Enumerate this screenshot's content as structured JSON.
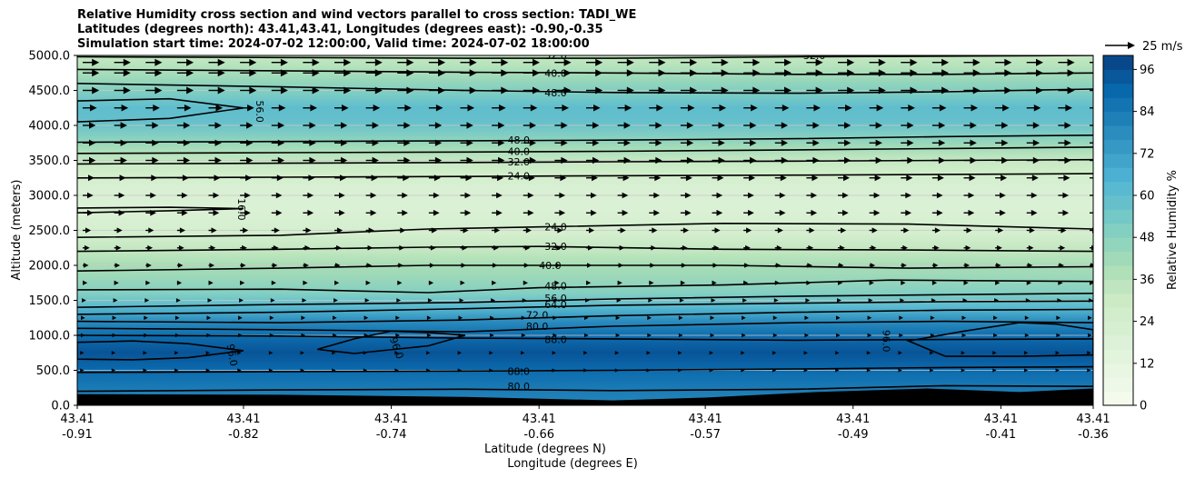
{
  "chart_data": {
    "type": "contour",
    "title_lines": [
      "Relative Humidity cross section and wind vectors parallel to cross section: TADI_WE",
      "Latitudes (degrees north): 43.41,43.41, Longitudes (degrees east): -0.90,-0.35",
      "Simulation start time: 2024-07-02 12:00:00, Valid time: 2024-07-02 18:00:00"
    ],
    "xlabel": "Latitude (degrees N)",
    "xlabel2": "Longitude (degrees E)",
    "ylabel": "Altitude (meters)",
    "ylim": [
      0,
      5000
    ],
    "x_range": [
      -0.91,
      -0.36
    ],
    "x_ticks": [
      {
        "lat": "43.41",
        "lon": "-0.91",
        "x": -0.91
      },
      {
        "lat": "43.41",
        "lon": "-0.82",
        "x": -0.82
      },
      {
        "lat": "43.41",
        "lon": "-0.74",
        "x": -0.74
      },
      {
        "lat": "43.41",
        "lon": "-0.66",
        "x": -0.66
      },
      {
        "lat": "43.41",
        "lon": "-0.57",
        "x": -0.57
      },
      {
        "lat": "43.41",
        "lon": "-0.49",
        "x": -0.49
      },
      {
        "lat": "43.41",
        "lon": "-0.41",
        "x": -0.41
      },
      {
        "lat": "43.41",
        "lon": "-0.36",
        "x": -0.36
      }
    ],
    "y_ticks": [
      "0.0",
      "500.0",
      "1000.0",
      "1500.0",
      "2000.0",
      "2500.0",
      "3000.0",
      "3500.0",
      "4000.0",
      "4500.0",
      "5000.0"
    ],
    "y_tick_values": [
      0,
      500,
      1000,
      1500,
      2000,
      2500,
      3000,
      3500,
      4000,
      4500,
      5000
    ],
    "grid_horizontal": true,
    "colorbar": {
      "label": "Relative Humidity %",
      "ticks": [
        "0",
        "12",
        "24",
        "36",
        "48",
        "60",
        "72",
        "84",
        "96"
      ],
      "tick_values": [
        0,
        12,
        24,
        36,
        48,
        60,
        72,
        84,
        96
      ],
      "range": [
        0,
        100
      ]
    },
    "wind_reference": {
      "label": "25 m/s"
    },
    "humidity_profile": [
      {
        "alt": 0,
        "rh": 80
      },
      {
        "alt": 250,
        "rh": 84
      },
      {
        "alt": 500,
        "rh": 89
      },
      {
        "alt": 750,
        "rh": 95
      },
      {
        "alt": 1000,
        "rh": 88
      },
      {
        "alt": 1200,
        "rh": 78
      },
      {
        "alt": 1400,
        "rh": 62
      },
      {
        "alt": 1600,
        "rh": 50
      },
      {
        "alt": 1800,
        "rh": 44
      },
      {
        "alt": 2000,
        "rh": 40
      },
      {
        "alt": 2200,
        "rh": 33
      },
      {
        "alt": 2450,
        "rh": 24
      },
      {
        "alt": 2800,
        "rh": 19
      },
      {
        "alt": 3100,
        "rh": 20
      },
      {
        "alt": 3300,
        "rh": 25
      },
      {
        "alt": 3500,
        "rh": 32
      },
      {
        "alt": 3700,
        "rh": 42
      },
      {
        "alt": 3850,
        "rh": 50
      },
      {
        "alt": 4050,
        "rh": 58
      },
      {
        "alt": 4250,
        "rh": 60
      },
      {
        "alt": 4450,
        "rh": 52
      },
      {
        "alt": 4650,
        "rh": 44
      },
      {
        "alt": 4850,
        "rh": 36
      },
      {
        "alt": 5000,
        "rh": 32
      }
    ],
    "terrain": [
      {
        "x": -0.91,
        "alt": 160
      },
      {
        "x": -0.8,
        "alt": 150
      },
      {
        "x": -0.7,
        "alt": 120
      },
      {
        "x": -0.62,
        "alt": 70
      },
      {
        "x": -0.57,
        "alt": 110
      },
      {
        "x": -0.51,
        "alt": 190
      },
      {
        "x": -0.45,
        "alt": 240
      },
      {
        "x": -0.4,
        "alt": 190
      },
      {
        "x": -0.36,
        "alt": 240
      }
    ],
    "contours": [
      {
        "level": "80.0",
        "points": [
          [
            -0.91,
            200
          ],
          [
            -0.8,
            220
          ],
          [
            -0.7,
            230
          ],
          [
            -0.62,
            210
          ],
          [
            -0.52,
            230
          ],
          [
            -0.44,
            280
          ],
          [
            -0.36,
            270
          ]
        ]
      },
      {
        "level": "88.0",
        "points": [
          [
            -0.91,
            470
          ],
          [
            -0.8,
            480
          ],
          [
            -0.7,
            490
          ],
          [
            -0.62,
            500
          ],
          [
            -0.52,
            520
          ],
          [
            -0.44,
            540
          ],
          [
            -0.36,
            550
          ]
        ]
      },
      {
        "level": "88.0",
        "points": [
          [
            -0.91,
            1000
          ],
          [
            -0.8,
            990
          ],
          [
            -0.7,
            960
          ],
          [
            -0.62,
            950
          ],
          [
            -0.52,
            930
          ],
          [
            -0.44,
            940
          ],
          [
            -0.36,
            950
          ]
        ]
      },
      {
        "level": "80.0",
        "points": [
          [
            -0.91,
            1100
          ],
          [
            -0.8,
            1080
          ],
          [
            -0.7,
            1050
          ],
          [
            -0.62,
            1130
          ],
          [
            -0.52,
            1180
          ],
          [
            -0.44,
            1200
          ],
          [
            -0.36,
            1180
          ]
        ]
      },
      {
        "level": "72.0",
        "points": [
          [
            -0.91,
            1200
          ],
          [
            -0.8,
            1180
          ],
          [
            -0.7,
            1220
          ],
          [
            -0.62,
            1280
          ],
          [
            -0.52,
            1330
          ],
          [
            -0.44,
            1360
          ],
          [
            -0.36,
            1370
          ]
        ]
      },
      {
        "level": "64.0",
        "points": [
          [
            -0.91,
            1300
          ],
          [
            -0.8,
            1330
          ],
          [
            -0.7,
            1380
          ],
          [
            -0.62,
            1430
          ],
          [
            -0.52,
            1460
          ],
          [
            -0.44,
            1480
          ],
          [
            -0.36,
            1490
          ]
        ]
      },
      {
        "level": "56.0",
        "points": [
          [
            -0.91,
            1400
          ],
          [
            -0.8,
            1440
          ],
          [
            -0.7,
            1470
          ],
          [
            -0.62,
            1520
          ],
          [
            -0.52,
            1560
          ],
          [
            -0.44,
            1580
          ],
          [
            -0.36,
            1600
          ]
        ]
      },
      {
        "level": "48.0",
        "points": [
          [
            -0.91,
            1650
          ],
          [
            -0.8,
            1660
          ],
          [
            -0.72,
            1610
          ],
          [
            -0.66,
            1680
          ],
          [
            -0.56,
            1720
          ],
          [
            -0.47,
            1790
          ],
          [
            -0.36,
            1770
          ]
        ]
      },
      {
        "level": "40.0",
        "points": [
          [
            -0.91,
            1920
          ],
          [
            -0.8,
            1960
          ],
          [
            -0.72,
            2000
          ],
          [
            -0.66,
            2000
          ],
          [
            -0.56,
            2000
          ],
          [
            -0.46,
            1960
          ],
          [
            -0.36,
            1980
          ]
        ]
      },
      {
        "level": "32.0",
        "points": [
          [
            -0.91,
            2200
          ],
          [
            -0.8,
            2230
          ],
          [
            -0.72,
            2260
          ],
          [
            -0.66,
            2270
          ],
          [
            -0.56,
            2230
          ],
          [
            -0.46,
            2220
          ],
          [
            -0.36,
            2200
          ]
        ]
      },
      {
        "level": "24.0",
        "points": [
          [
            -0.91,
            2400
          ],
          [
            -0.8,
            2430
          ],
          [
            -0.72,
            2520
          ],
          [
            -0.66,
            2550
          ],
          [
            -0.56,
            2600
          ],
          [
            -0.46,
            2590
          ],
          [
            -0.36,
            2520
          ]
        ]
      },
      {
        "level": "24.0",
        "points": [
          [
            -0.91,
            3250
          ],
          [
            -0.8,
            3260
          ],
          [
            -0.7,
            3270
          ],
          [
            -0.62,
            3280
          ],
          [
            -0.52,
            3290
          ],
          [
            -0.44,
            3300
          ],
          [
            -0.36,
            3310
          ]
        ]
      },
      {
        "level": "32.0",
        "points": [
          [
            -0.91,
            3450
          ],
          [
            -0.8,
            3460
          ],
          [
            -0.7,
            3470
          ],
          [
            -0.62,
            3480
          ],
          [
            -0.52,
            3490
          ],
          [
            -0.44,
            3500
          ],
          [
            -0.36,
            3510
          ]
        ]
      },
      {
        "level": "40.0",
        "points": [
          [
            -0.91,
            3600
          ],
          [
            -0.8,
            3610
          ],
          [
            -0.7,
            3620
          ],
          [
            -0.62,
            3630
          ],
          [
            -0.52,
            3650
          ],
          [
            -0.44,
            3670
          ],
          [
            -0.36,
            3690
          ]
        ]
      },
      {
        "level": "48.0",
        "points": [
          [
            -0.91,
            3760
          ],
          [
            -0.8,
            3770
          ],
          [
            -0.7,
            3780
          ],
          [
            -0.62,
            3790
          ],
          [
            -0.52,
            3810
          ],
          [
            -0.44,
            3840
          ],
          [
            -0.36,
            3860
          ]
        ]
      },
      {
        "level": "48.0",
        "points": [
          [
            -0.91,
            4600
          ],
          [
            -0.8,
            4550
          ],
          [
            -0.7,
            4500
          ],
          [
            -0.62,
            4470
          ],
          [
            -0.52,
            4460
          ],
          [
            -0.44,
            4480
          ],
          [
            -0.36,
            4520
          ]
        ]
      },
      {
        "level": "40.0",
        "points": [
          [
            -0.91,
            4800
          ],
          [
            -0.8,
            4780
          ],
          [
            -0.7,
            4760
          ],
          [
            -0.62,
            4750
          ],
          [
            -0.52,
            4730
          ],
          [
            -0.44,
            4730
          ],
          [
            -0.36,
            4750
          ]
        ]
      },
      {
        "level": "32.0",
        "points": [
          [
            -0.91,
            4980
          ],
          [
            -0.8,
            4970
          ],
          [
            -0.7,
            4960
          ],
          [
            -0.62,
            4960
          ],
          [
            -0.52,
            4980
          ],
          [
            -0.44,
            4990
          ],
          [
            -0.36,
            5000
          ]
        ]
      }
    ],
    "closed_contours": [
      {
        "level": "96.0",
        "points": [
          [
            -0.91,
            900
          ],
          [
            -0.88,
            920
          ],
          [
            -0.85,
            880
          ],
          [
            -0.82,
            780
          ],
          [
            -0.85,
            680
          ],
          [
            -0.88,
            650
          ],
          [
            -0.91,
            660
          ]
        ]
      },
      {
        "level": "96.0",
        "points": [
          [
            -0.78,
            800
          ],
          [
            -0.76,
            950
          ],
          [
            -0.74,
            1060
          ],
          [
            -0.72,
            1040
          ],
          [
            -0.7,
            1000
          ],
          [
            -0.72,
            850
          ],
          [
            -0.76,
            740
          ]
        ]
      },
      {
        "level": "96.0",
        "points": [
          [
            -0.46,
            920
          ],
          [
            -0.43,
            1060
          ],
          [
            -0.4,
            1180
          ],
          [
            -0.38,
            1160
          ],
          [
            -0.36,
            1080
          ],
          [
            -0.36,
            720
          ],
          [
            -0.4,
            700
          ],
          [
            -0.44,
            700
          ]
        ]
      },
      {
        "level": "56.0",
        "points": [
          [
            -0.91,
            4050
          ],
          [
            -0.86,
            4100
          ],
          [
            -0.82,
            4250
          ],
          [
            -0.86,
            4380
          ],
          [
            -0.91,
            4350
          ]
        ]
      },
      {
        "level": "16.0",
        "points": [
          [
            -0.91,
            2750
          ],
          [
            -0.86,
            2780
          ],
          [
            -0.82,
            2810
          ],
          [
            -0.86,
            2830
          ],
          [
            -0.91,
            2820
          ]
        ]
      }
    ],
    "contour_labels": [
      {
        "text": "32.0",
        "x": -0.651,
        "alt": 5000,
        "rotate": 0
      },
      {
        "text": "32.0",
        "x": -0.511,
        "alt": 5000,
        "rotate": 0
      },
      {
        "text": "40.0",
        "x": -0.651,
        "alt": 4750,
        "rotate": 0
      },
      {
        "text": "48.0",
        "x": -0.651,
        "alt": 4470,
        "rotate": 0
      },
      {
        "text": "56.0",
        "x": -0.811,
        "alt": 4200,
        "rotate": 90
      },
      {
        "text": "48.0",
        "x": -0.671,
        "alt": 3790,
        "rotate": 0
      },
      {
        "text": "40.0",
        "x": -0.671,
        "alt": 3630,
        "rotate": 0
      },
      {
        "text": "32.0",
        "x": -0.671,
        "alt": 3480,
        "rotate": 0
      },
      {
        "text": "24.0",
        "x": -0.671,
        "alt": 3280,
        "rotate": 0
      },
      {
        "text": "16.0",
        "x": -0.821,
        "alt": 2800,
        "rotate": 90
      },
      {
        "text": "24.0",
        "x": -0.651,
        "alt": 2550,
        "rotate": 0
      },
      {
        "text": "32.0",
        "x": -0.651,
        "alt": 2270,
        "rotate": 0
      },
      {
        "text": "40.0",
        "x": -0.654,
        "alt": 2000,
        "rotate": 0
      },
      {
        "text": "48.0",
        "x": -0.651,
        "alt": 1710,
        "rotate": 0
      },
      {
        "text": "56.0",
        "x": -0.651,
        "alt": 1530,
        "rotate": 0
      },
      {
        "text": "64.0",
        "x": -0.651,
        "alt": 1440,
        "rotate": 0
      },
      {
        "text": "72.0",
        "x": -0.661,
        "alt": 1290,
        "rotate": 0
      },
      {
        "text": "80.0",
        "x": -0.661,
        "alt": 1130,
        "rotate": 0
      },
      {
        "text": "88.0",
        "x": -0.651,
        "alt": 940,
        "rotate": 0
      },
      {
        "text": "96.0",
        "x": -0.826,
        "alt": 720,
        "rotate": 80
      },
      {
        "text": "96.0",
        "x": -0.737,
        "alt": 820,
        "rotate": 70
      },
      {
        "text": "96.0",
        "x": -0.472,
        "alt": 920,
        "rotate": 90
      },
      {
        "text": "88.0",
        "x": -0.671,
        "alt": 490,
        "rotate": 0
      },
      {
        "text": "80.0",
        "x": -0.671,
        "alt": 270,
        "rotate": 0
      }
    ],
    "wind_levels": [
      {
        "alt": 4900,
        "speed": 14
      },
      {
        "alt": 4750,
        "speed": 14
      },
      {
        "alt": 4500,
        "speed": 14
      },
      {
        "alt": 4250,
        "speed": 12
      },
      {
        "alt": 4000,
        "speed": 11
      },
      {
        "alt": 3750,
        "speed": 11
      },
      {
        "alt": 3500,
        "speed": 11
      },
      {
        "alt": 3250,
        "speed": 10
      },
      {
        "alt": 3000,
        "speed": 9
      },
      {
        "alt": 2750,
        "speed": 9
      },
      {
        "alt": 2500,
        "speed": 7
      },
      {
        "alt": 2250,
        "speed": 6
      },
      {
        "alt": 2000,
        "speed": 5
      },
      {
        "alt": 1750,
        "speed": 4
      },
      {
        "alt": 1500,
        "speed": 3
      },
      {
        "alt": 1250,
        "speed": 2
      },
      {
        "alt": 1000,
        "speed": 2
      },
      {
        "alt": 750,
        "speed": 1
      },
      {
        "alt": 500,
        "speed": 1
      }
    ]
  }
}
